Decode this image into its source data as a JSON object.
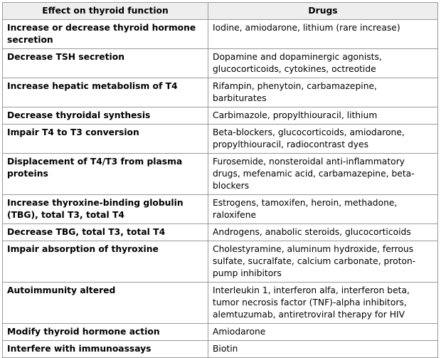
{
  "table": {
    "headers": [
      "Effect on thyroid function",
      "Drugs"
    ],
    "rows": [
      {
        "effect": "Increase or decrease thyroid hormone secretion",
        "drugs": "Iodine, amiodarone, lithium (rare increase)"
      },
      {
        "effect": "Decrease TSH secretion",
        "drugs": "Dopamine and dopaminergic agonists, glucocorticoids, cytokines, octreotide"
      },
      {
        "effect": "Increase hepatic metabolism of T4",
        "drugs": "Rifampin, phenytoin, carbamazepine, barbiturates"
      },
      {
        "effect": "Decrease thyroidal synthesis",
        "drugs": "Carbimazole, propylthiouracil, lithium"
      },
      {
        "effect": "Impair T4 to T3 conversion",
        "drugs": "Beta-blockers, glucocorticoids, amiodarone, propylthiouracil, radiocontrast dyes"
      },
      {
        "effect": "Displacement of T4/T3 from plasma proteins",
        "drugs": "Furosemide, nonsteroidal anti-inflammatory drugs, mefenamic acid, carbamazepine, beta-blockers"
      },
      {
        "effect": "Increase thyroxine-binding globulin (TBG), total T3, total T4",
        "drugs": "Estrogens, tamoxifen, heroin, methadone, raloxifene"
      },
      {
        "effect": "Decrease TBG, total T3, total T4",
        "drugs": "Androgens, anabolic steroids, glucocorticoids"
      },
      {
        "effect": "Impair absorption of thyroxine",
        "drugs": "Cholestyramine, aluminum hydroxide, ferrous sulfate, sucralfate, calcium carbonate, proton-pump inhibitors"
      },
      {
        "effect": "Autoimmunity altered",
        "drugs": "Interleukin 1, interferon alfa, interferon beta, tumor necrosis factor (TNF)-alpha inhibitors, alemtuzumab, antiretroviral therapy for HIV"
      },
      {
        "effect": "Modify thyroid hormone action",
        "drugs": "Amiodarone"
      },
      {
        "effect": "Interfere with immunoassays",
        "drugs": "Biotin"
      }
    ]
  }
}
